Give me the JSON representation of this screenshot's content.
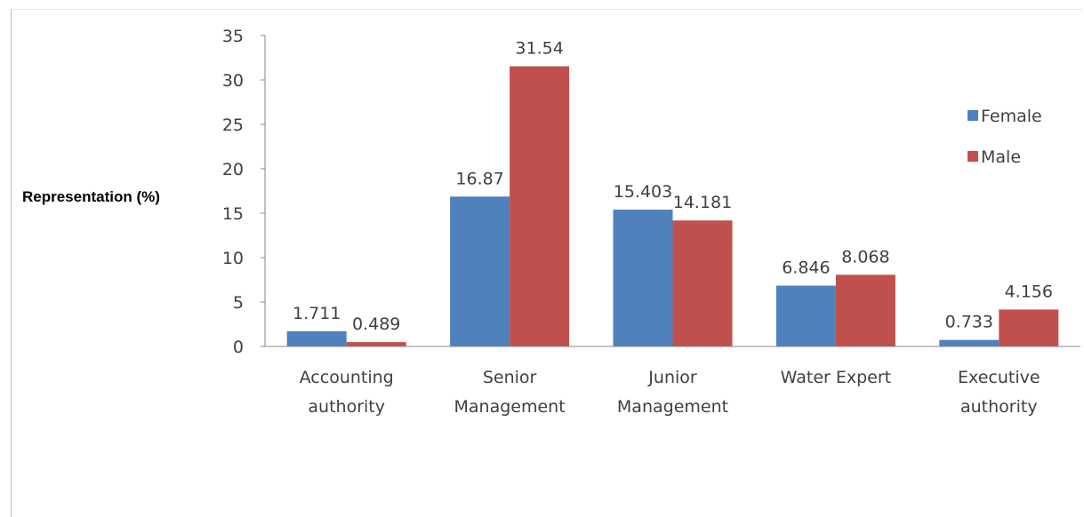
{
  "chart_data": {
    "type": "bar",
    "title": "",
    "xlabel": "",
    "ylabel": "Representation (%)",
    "ylim": [
      0,
      35
    ],
    "yticks": [
      "0",
      "5",
      "10",
      "15",
      "20",
      "25",
      "30",
      "35"
    ],
    "categories": [
      [
        "Accounting",
        "authority"
      ],
      [
        "Senior",
        "Management"
      ],
      [
        "Junior",
        "Management"
      ],
      [
        "Water Expert"
      ],
      [
        "Executive",
        "authority"
      ]
    ],
    "series": [
      {
        "name": "Female",
        "color": "#4f81bd",
        "values": [
          1.711,
          16.87,
          15.403,
          6.846,
          0.733
        ],
        "labels": [
          "1.711",
          "16.87",
          "15.403",
          "6.846",
          "0.733"
        ]
      },
      {
        "name": "Male",
        "color": "#c0504d",
        "values": [
          0.489,
          31.54,
          14.181,
          8.068,
          4.156
        ],
        "labels": [
          "0.489",
          "31.54",
          "14.181",
          "8.068",
          "4.156"
        ]
      }
    ],
    "grid": false,
    "legend_position": "right"
  }
}
